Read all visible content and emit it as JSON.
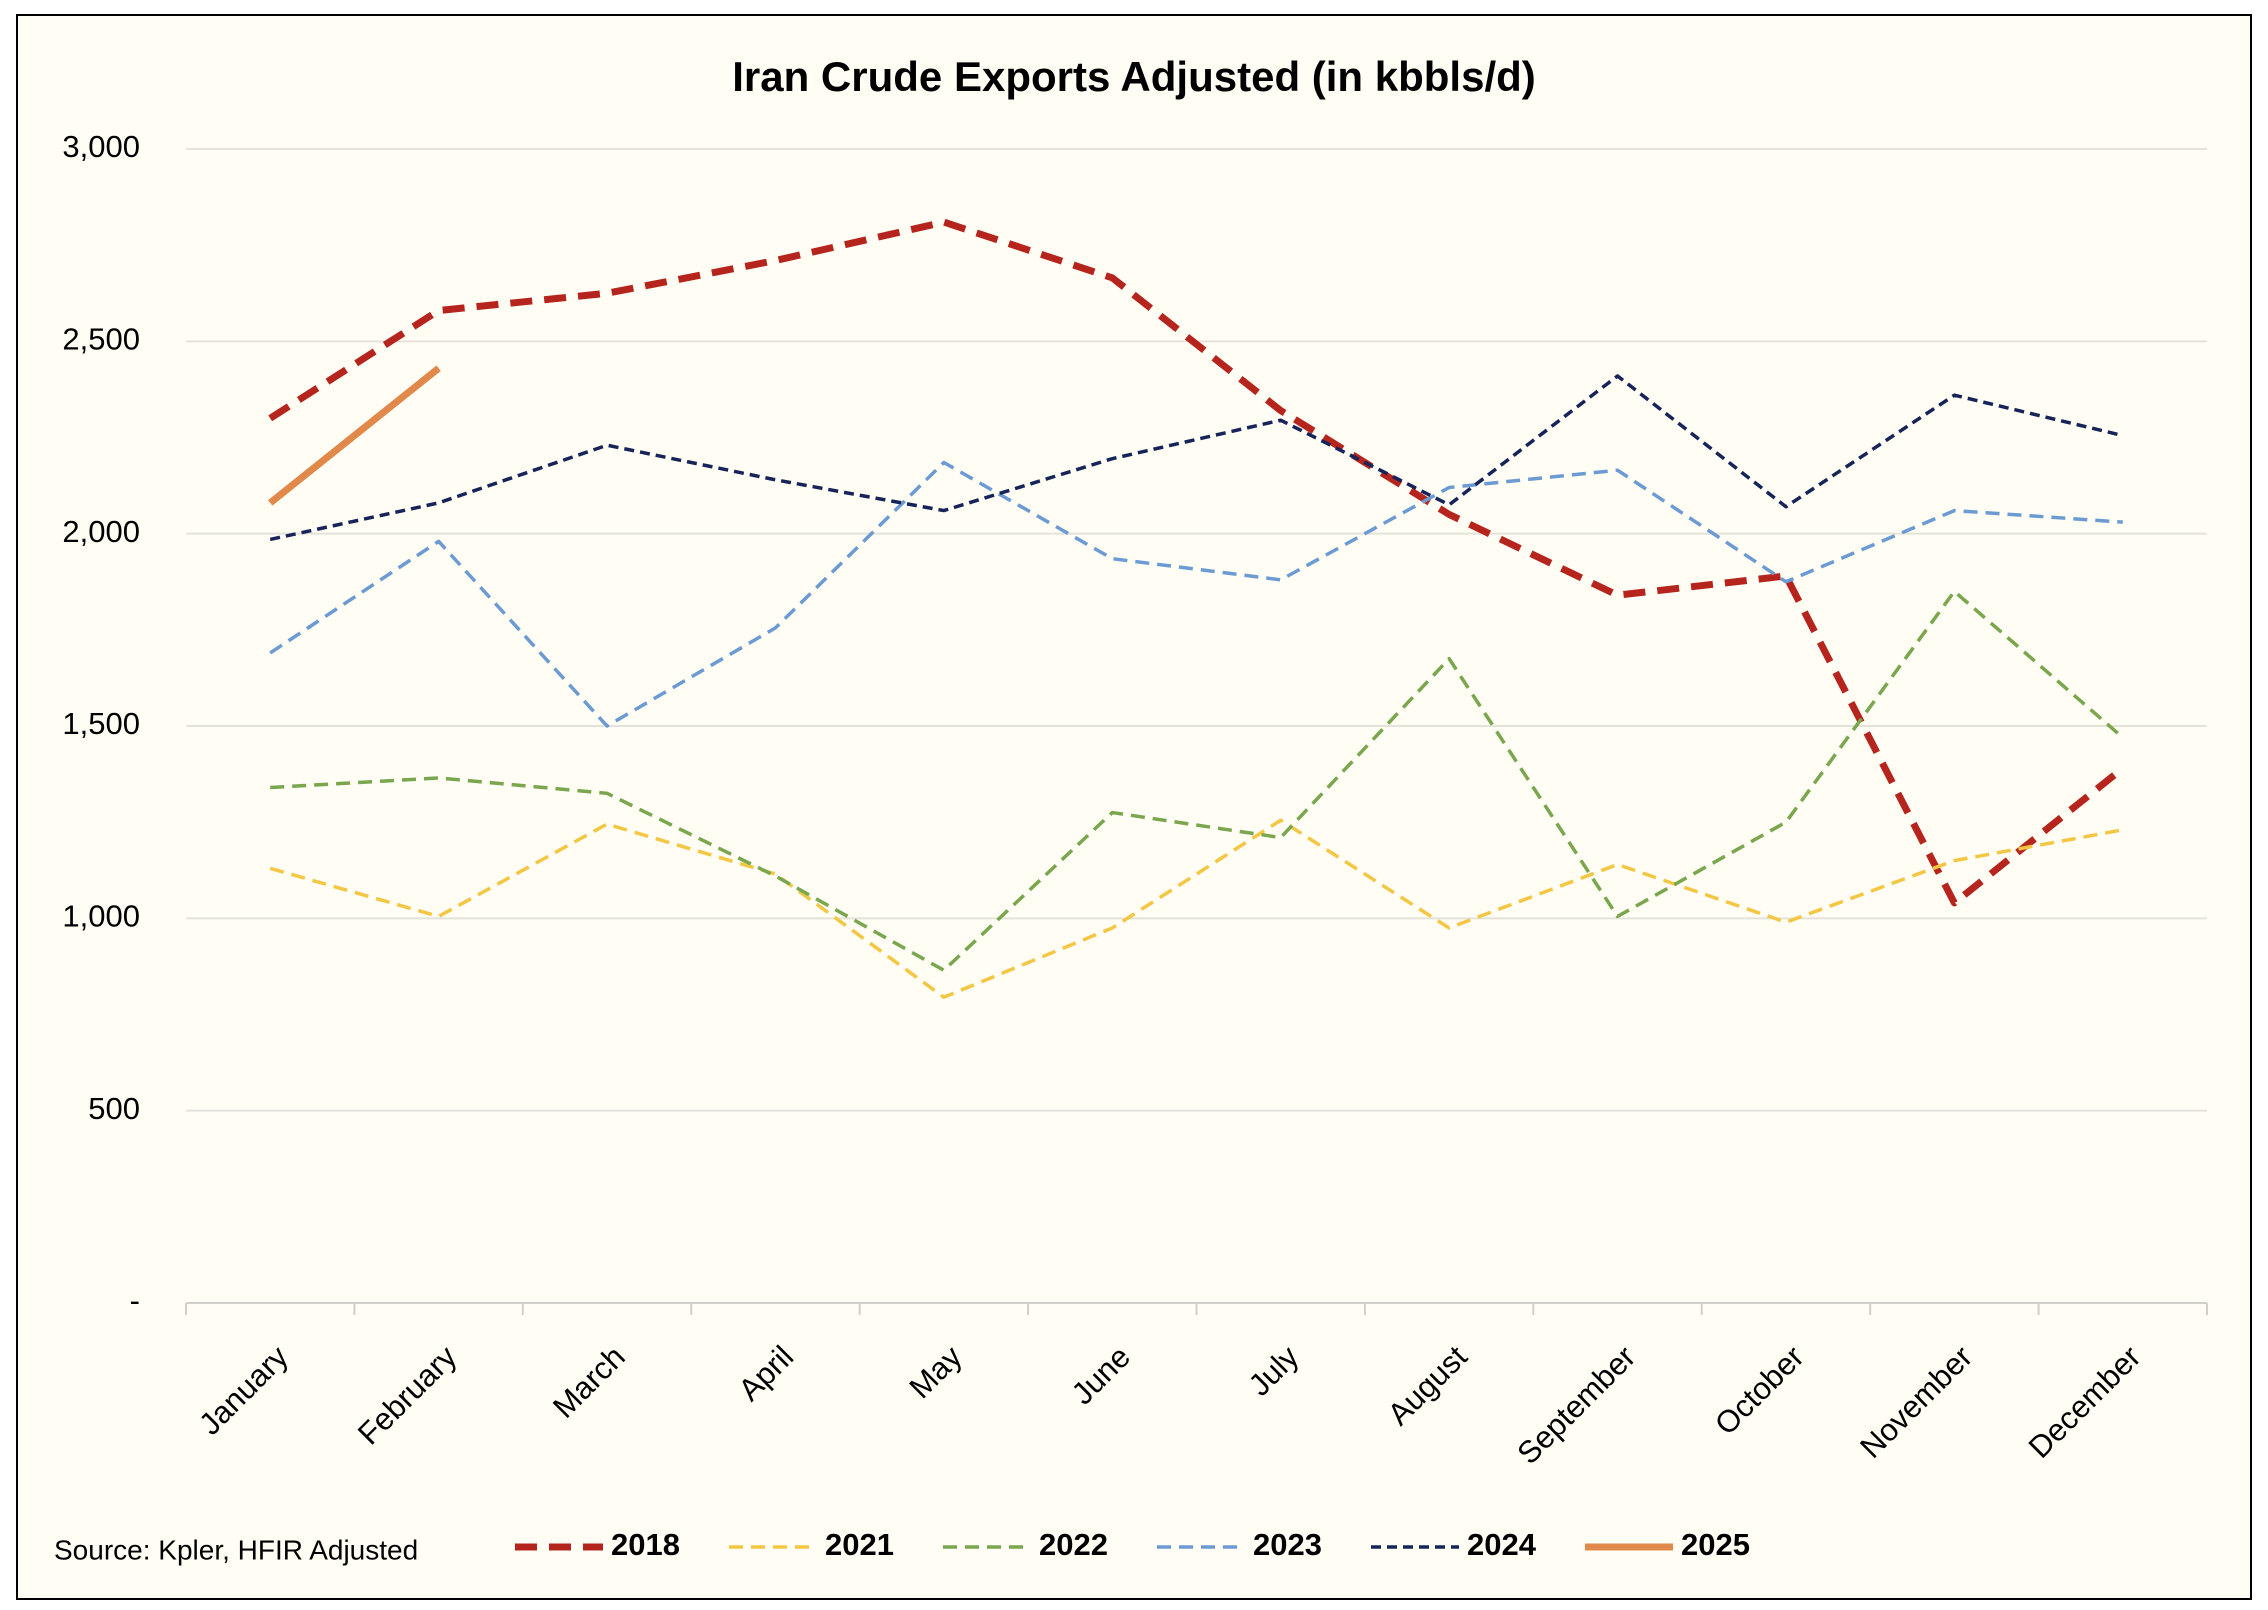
{
  "chart_data": {
    "type": "line",
    "title": "Iran Crude Exports Adjusted (in kbbls/d)",
    "source": "Source: Kpler, HFIR Adjusted",
    "categories": [
      "January",
      "February",
      "March",
      "April",
      "May",
      "June",
      "July",
      "August",
      "September",
      "October",
      "November",
      "December"
    ],
    "series": [
      {
        "name": "2018",
        "color": "#b5251d",
        "values": [
          2300,
          2580,
          2625,
          2710,
          2810,
          2665,
          2320,
          2050,
          1840,
          1890,
          1040,
          1390
        ]
      },
      {
        "name": "2021",
        "color": "#f3c744",
        "values": [
          1130,
          1005,
          1245,
          1115,
          795,
          975,
          1255,
          975,
          1140,
          990,
          1150,
          1230
        ]
      },
      {
        "name": "2022",
        "color": "#7aa64e",
        "values": [
          1340,
          1365,
          1325,
          1110,
          865,
          1275,
          1210,
          1675,
          1005,
          1250,
          1850,
          1470
        ]
      },
      {
        "name": "2023",
        "color": "#6b9bd2",
        "values": [
          1690,
          1980,
          1500,
          1755,
          2185,
          1935,
          1880,
          2120,
          2165,
          1875,
          2060,
          2030
        ]
      },
      {
        "name": "2024",
        "color": "#16245a",
        "values": [
          1985,
          2080,
          2230,
          2140,
          2060,
          2195,
          2295,
          2075,
          2410,
          2070,
          2360,
          2255
        ]
      },
      {
        "name": "2025",
        "color": "#e0894a",
        "values": [
          2080,
          2430,
          null,
          null,
          null,
          null,
          null,
          null,
          null,
          null,
          null,
          null
        ]
      }
    ],
    "ylim": [
      0,
      3000
    ],
    "yticks": [
      {
        "value": 0,
        "label": "-"
      },
      500,
      {
        "value": 1000,
        "label": "1,000"
      },
      {
        "value": 1500,
        "label": "1,500"
      },
      {
        "value": 2000,
        "label": "2,000"
      },
      {
        "value": 2500,
        "label": "2,500"
      },
      {
        "value": 3000,
        "label": "3,000"
      }
    ],
    "grid": true
  }
}
